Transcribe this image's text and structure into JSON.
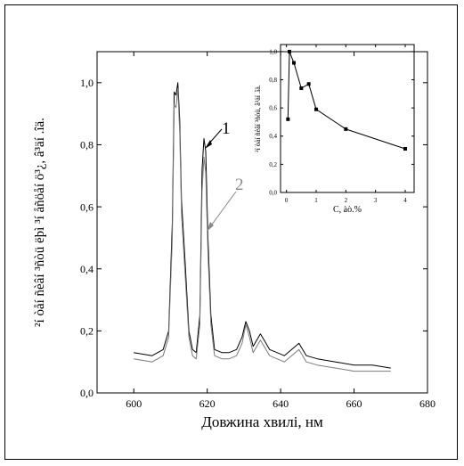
{
  "chart_data": [
    {
      "type": "line",
      "xlabel": "Довжина хвилі, нм",
      "ylabel": "²í òåí ñèâí ³ñòü ëþì ³í åñöåí ö³¿, â³äí .îä.",
      "xlim": [
        590,
        680
      ],
      "ylim": [
        0,
        1.1
      ],
      "x_ticks": [
        "600",
        "620",
        "640",
        "660",
        "680"
      ],
      "y_ticks": [
        "0,0",
        "0,2",
        "0,4",
        "0,6",
        "0,8",
        "1,0"
      ],
      "series": [
        {
          "name": "1",
          "color": "#000000",
          "x": [
            600,
            605,
            608,
            609.5,
            610.5,
            611,
            611.5,
            612,
            612.5,
            613,
            614,
            615,
            616,
            617,
            618,
            618.6,
            619.1,
            619.6,
            620.2,
            621,
            622,
            624,
            626,
            628,
            629.5,
            630.5,
            631.5,
            632.5,
            633.5,
            634.5,
            635.5,
            637,
            639,
            641,
            643,
            645,
            647,
            650,
            655,
            660,
            665,
            670
          ],
          "y": [
            0.13,
            0.12,
            0.14,
            0.2,
            0.55,
            0.97,
            0.96,
            1.0,
            0.88,
            0.62,
            0.42,
            0.2,
            0.14,
            0.13,
            0.25,
            0.72,
            0.82,
            0.78,
            0.5,
            0.25,
            0.14,
            0.13,
            0.13,
            0.14,
            0.18,
            0.23,
            0.2,
            0.15,
            0.17,
            0.19,
            0.17,
            0.14,
            0.13,
            0.12,
            0.14,
            0.16,
            0.12,
            0.11,
            0.1,
            0.09,
            0.09,
            0.08
          ]
        },
        {
          "name": "2",
          "color": "#7a7a7a",
          "x": [
            600,
            605,
            608,
            609.5,
            610.5,
            611,
            611.5,
            612,
            612.5,
            613,
            614,
            615,
            616,
            617,
            618,
            618.6,
            619.1,
            619.6,
            620.2,
            621,
            622,
            624,
            626,
            628,
            629.5,
            630.5,
            631.5,
            632.5,
            633.5,
            634.5,
            635.5,
            637,
            639,
            641,
            643,
            645,
            647,
            650,
            655,
            660,
            665,
            670
          ],
          "y": [
            0.11,
            0.1,
            0.12,
            0.18,
            0.5,
            0.93,
            0.92,
            0.98,
            0.84,
            0.58,
            0.38,
            0.18,
            0.12,
            0.11,
            0.22,
            0.65,
            0.76,
            0.71,
            0.45,
            0.22,
            0.12,
            0.11,
            0.11,
            0.12,
            0.16,
            0.22,
            0.18,
            0.13,
            0.15,
            0.17,
            0.15,
            0.12,
            0.11,
            0.1,
            0.12,
            0.14,
            0.1,
            0.09,
            0.08,
            0.07,
            0.07,
            0.07
          ]
        }
      ],
      "annotations": [
        "1",
        "2"
      ]
    },
    {
      "type": "line",
      "xlabel": "C, àò.%",
      "ylabel": "²í òåí ñèâí ³ñòü, â³äí .îä.",
      "xlim": [
        -0.2,
        4.3
      ],
      "ylim": [
        0,
        1.05
      ],
      "x_ticks": [
        "0",
        "1",
        "2",
        "3",
        "4"
      ],
      "y_ticks": [
        "0,0",
        "0,2",
        "0,4",
        "0,6",
        "0,8",
        "1,0"
      ],
      "series": [
        {
          "x": [
            0.05,
            0.1,
            0.25,
            0.5,
            0.75,
            1.0,
            2.0,
            4.0
          ],
          "y": [
            0.52,
            1.0,
            0.92,
            0.74,
            0.77,
            0.59,
            0.45,
            0.31
          ]
        }
      ]
    }
  ]
}
